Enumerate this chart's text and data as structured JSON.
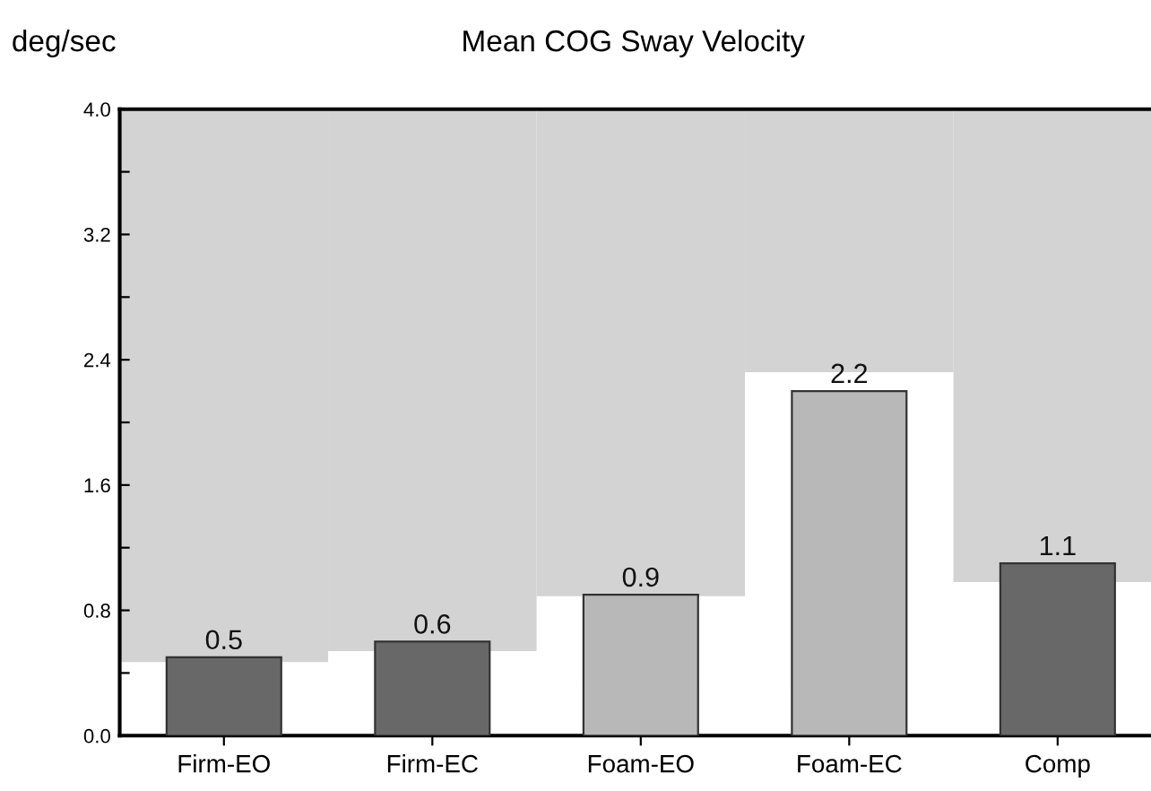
{
  "chart_data": {
    "type": "bar",
    "title": "Mean COG Sway Velocity",
    "ylabel": "deg/sec",
    "categories": [
      "Firm-EO",
      "Firm-EC",
      "Foam-EO",
      "Foam-EC",
      "Comp"
    ],
    "series": [
      {
        "color": "#d3d3d3",
        "base": [
          0.47,
          0.54,
          0.89,
          2.32,
          0.98
        ],
        "values": [
          3.53,
          3.46,
          3.11,
          1.68,
          3.02
        ]
      },
      {
        "colors": [
          "#686868",
          "#686868",
          "#b8b8b8",
          "#b8b8b8",
          "#686868"
        ],
        "values": [
          0.5,
          0.6,
          0.9,
          2.2,
          1.1
        ],
        "value_labels": [
          "0.5",
          "0.6",
          "0.9",
          "2.2",
          "1.1"
        ]
      }
    ],
    "ylim": [
      0,
      4.0
    ],
    "yticks": [
      {
        "value": 0,
        "label": "0.0"
      },
      {
        "value": 0.4,
        "label": null
      },
      {
        "value": 0.8,
        "label": "0.8"
      },
      {
        "value": 1.2,
        "label": null
      },
      {
        "value": 1.6,
        "label": "1.6"
      },
      {
        "value": 2.0,
        "label": null
      },
      {
        "value": 2.4,
        "label": "2.4"
      },
      {
        "value": 2.8,
        "label": null
      },
      {
        "value": 3.2,
        "label": "3.2"
      },
      {
        "value": 3.6,
        "label": null
      },
      {
        "value": 4.0,
        "label": "4.0"
      }
    ],
    "grid": false,
    "legend": false
  }
}
